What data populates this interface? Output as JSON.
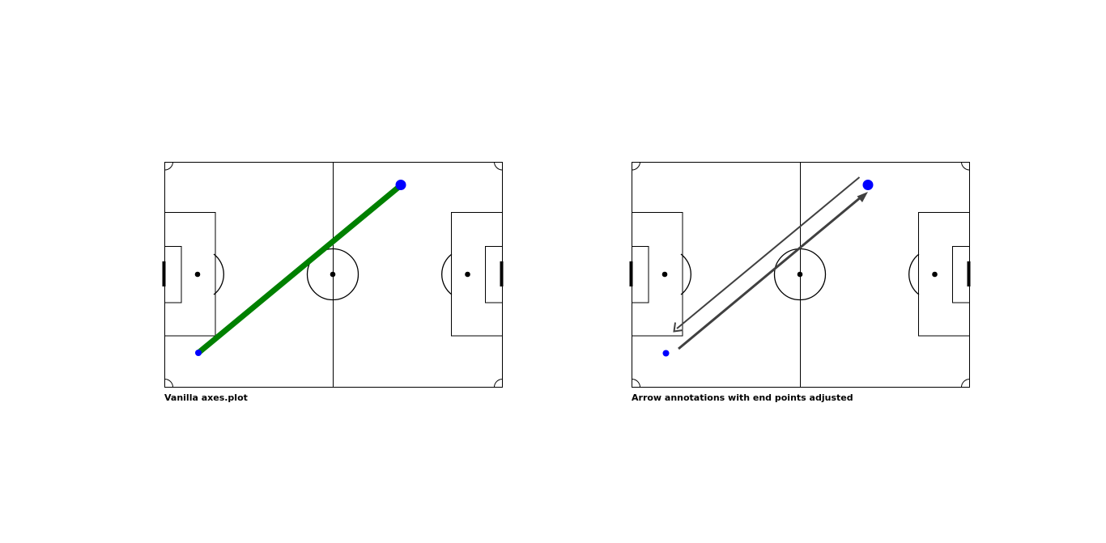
{
  "figure": {
    "panels": [
      {
        "caption": "Vanilla axes.plot"
      },
      {
        "caption": "Arrow annotations with end points adjusted"
      }
    ]
  },
  "colors": {
    "pitch_line": "#000000",
    "plot_line": "#008000",
    "marker": "#0000ff",
    "arrow": "#404040"
  }
}
